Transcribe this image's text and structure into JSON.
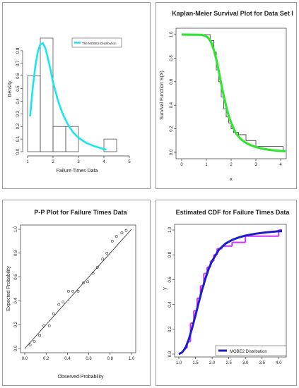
{
  "colors": {
    "density_curve": "#19e6ee",
    "km_curve": "#33e533",
    "cdf_curve": "#1c1cc8",
    "cdf_step": "#cc33ff",
    "axis": "#333333"
  },
  "chart_data": [
    {
      "type": "bar",
      "title": "",
      "xlabel": "Failure Times Data",
      "ylabel": "Density",
      "xlim": [
        1,
        5
      ],
      "ylim": [
        0,
        0.9
      ],
      "xticks": [
        "1",
        "2",
        "3",
        "4",
        "5"
      ],
      "yticks": [
        "0.0",
        "0.1",
        "0.2",
        "0.3",
        "0.4",
        "0.5",
        "0.6",
        "0.7",
        "0.8"
      ],
      "bins": [
        {
          "from": 1.0,
          "to": 1.5,
          "value": 0.6
        },
        {
          "from": 1.5,
          "to": 2.0,
          "value": 0.9
        },
        {
          "from": 2.0,
          "to": 2.5,
          "value": 0.2
        },
        {
          "from": 2.5,
          "to": 3.0,
          "value": 0.2
        },
        {
          "from": 3.0,
          "to": 3.5,
          "value": 0.0
        },
        {
          "from": 3.5,
          "to": 4.0,
          "value": 0.0
        },
        {
          "from": 4.0,
          "to": 4.5,
          "value": 0.1
        }
      ],
      "series": [
        {
          "name": "The MOBE2 Distribution",
          "x": [
            1.1,
            1.2,
            1.3,
            1.4,
            1.5,
            1.6,
            1.7,
            1.8,
            1.9,
            2.0,
            2.2,
            2.4,
            2.6,
            2.8,
            3.0,
            3.3,
            3.6,
            4.0,
            4.1
          ],
          "y": [
            0.28,
            0.5,
            0.67,
            0.79,
            0.85,
            0.86,
            0.82,
            0.74,
            0.65,
            0.55,
            0.4,
            0.29,
            0.21,
            0.15,
            0.11,
            0.07,
            0.045,
            0.02,
            0.015
          ]
        }
      ],
      "legend": "top-right"
    },
    {
      "type": "line",
      "title": "Kaplan-Meier Survival Plot for Data Set I",
      "xlabel": "x",
      "ylabel": "Survival  Function S(X)",
      "xlim": [
        0,
        4
      ],
      "ylim": [
        0,
        1
      ],
      "xticks": [
        "0",
        "1",
        "2",
        "3",
        "4"
      ],
      "yticks": [
        "0.0",
        "0.2",
        "0.4",
        "0.6",
        "0.8",
        "1.0"
      ],
      "km_steps": {
        "x": [
          0,
          1.15,
          1.3,
          1.4,
          1.5,
          1.6,
          1.7,
          1.8,
          1.9,
          2.0,
          2.1,
          2.3,
          2.6,
          3.0,
          3.1,
          4.1
        ],
        "y": [
          1.0,
          0.95,
          0.85,
          0.7,
          0.6,
          0.47,
          0.37,
          0.3,
          0.25,
          0.2,
          0.17,
          0.15,
          0.1,
          0.05,
          0.05,
          0.0
        ]
      },
      "series": [
        {
          "x": [
            0,
            0.8,
            1.0,
            1.1,
            1.2,
            1.3,
            1.4,
            1.5,
            1.6,
            1.7,
            1.8,
            1.9,
            2.0,
            2.2,
            2.4,
            2.6,
            2.8,
            3.0,
            3.3,
            3.6,
            4.0,
            4.2
          ],
          "y": [
            1.0,
            0.998,
            0.985,
            0.965,
            0.93,
            0.87,
            0.79,
            0.69,
            0.58,
            0.48,
            0.39,
            0.31,
            0.25,
            0.16,
            0.11,
            0.08,
            0.06,
            0.045,
            0.03,
            0.02,
            0.012,
            0.01
          ]
        }
      ]
    },
    {
      "type": "scatter",
      "title": "P-P Plot for Failure Times Data",
      "xlabel": "Observed Probability",
      "ylabel": "Expected Probability",
      "xlim": [
        0,
        1
      ],
      "ylim": [
        0,
        1
      ],
      "xticks": [
        "0.0",
        "0.2",
        "0.4",
        "0.6",
        "0.8",
        "1.0"
      ],
      "yticks": [
        "0.0",
        "0.2",
        "0.4",
        "0.6",
        "0.8",
        "1.0"
      ],
      "reference_line": [
        [
          0,
          0
        ],
        [
          1,
          1
        ]
      ],
      "points": {
        "x": [
          0.05,
          0.09,
          0.14,
          0.18,
          0.23,
          0.27,
          0.32,
          0.36,
          0.41,
          0.45,
          0.5,
          0.55,
          0.59,
          0.64,
          0.68,
          0.73,
          0.77,
          0.82,
          0.86,
          0.91,
          0.95
        ],
        "y": [
          0.03,
          0.06,
          0.11,
          0.19,
          0.19,
          0.29,
          0.37,
          0.39,
          0.48,
          0.48,
          0.48,
          0.55,
          0.56,
          0.63,
          0.68,
          0.75,
          0.8,
          0.9,
          0.94,
          0.97,
          0.99
        ]
      }
    },
    {
      "type": "line",
      "title": "Estimated CDF for Failure Times Data",
      "xlabel": "",
      "ylabel": "y",
      "xlim": [
        1.0,
        4.1
      ],
      "ylim": [
        0,
        1
      ],
      "xticks": [
        "1.0",
        "1.5",
        "2.0",
        "2.5",
        "3.0",
        "3.5",
        "4.0"
      ],
      "yticks": [
        "0.0",
        "0.2",
        "0.4",
        "0.6",
        "0.8",
        "1.0"
      ],
      "ecdf": {
        "x": [
          1.15,
          1.25,
          1.35,
          1.45,
          1.55,
          1.65,
          1.75,
          1.85,
          1.95,
          2.05,
          2.15,
          2.3,
          2.6,
          3.0,
          4.0
        ],
        "y": [
          0.05,
          0.1,
          0.25,
          0.35,
          0.45,
          0.55,
          0.65,
          0.7,
          0.75,
          0.8,
          0.85,
          0.87,
          0.9,
          0.95,
          1.0
        ]
      },
      "series": [
        {
          "name": "MOBE2 Distribution",
          "x": [
            1.0,
            1.1,
            1.2,
            1.3,
            1.4,
            1.5,
            1.6,
            1.7,
            1.8,
            1.9,
            2.0,
            2.2,
            2.4,
            2.6,
            2.8,
            3.0,
            3.3,
            3.6,
            4.0,
            4.1
          ],
          "y": [
            0.0,
            0.015,
            0.05,
            0.12,
            0.21,
            0.31,
            0.42,
            0.52,
            0.61,
            0.69,
            0.75,
            0.84,
            0.89,
            0.92,
            0.94,
            0.955,
            0.97,
            0.98,
            0.99,
            0.99
          ]
        }
      ],
      "legend": "bottom-right"
    }
  ]
}
